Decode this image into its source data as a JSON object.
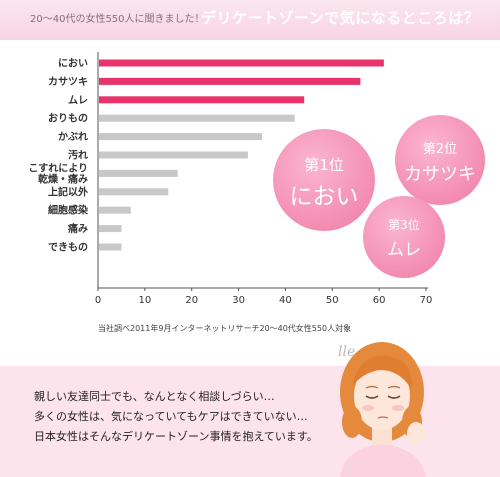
{
  "header": {
    "note": "20〜40代の女性550人に聞きました！",
    "title": "デリケートゾーンで気になるところは？"
  },
  "chart_data": {
    "type": "bar",
    "orientation": "horizontal",
    "categories": [
      "におい",
      "カサツキ",
      "ムレ",
      "おりもの",
      "かぶれ",
      "汚れ",
      [
        "こすれにより",
        "乾燥・痛み"
      ],
      "上記以外",
      "細胞感染",
      "痛み",
      "できもの"
    ],
    "values": [
      61,
      56,
      44,
      42,
      35,
      32,
      17,
      15,
      7,
      5,
      5
    ],
    "highlight_count": 3,
    "highlight_color": "#e8336d",
    "default_color": "#c8c8c8",
    "xticks": [
      0,
      10,
      20,
      30,
      40,
      50,
      60,
      70
    ],
    "xlim": [
      0,
      70
    ],
    "grid": false
  },
  "source_note": "当社調べ2011年9月インターネットリサーチ20〜40代女性550人対象",
  "ranks": [
    {
      "position": "第1位",
      "item": "におい"
    },
    {
      "position": "第2位",
      "item": "カサツキ"
    },
    {
      "position": "第3位",
      "item": "ムレ"
    }
  ],
  "message_lines": [
    "親しい友達同士でも、なんとなく相談しづらい…",
    "多くの女性は、気になっていてもケアはできていない…",
    "日本女性はそんなデリケートゾーン事情を抱えています。"
  ],
  "decoration": "lle"
}
